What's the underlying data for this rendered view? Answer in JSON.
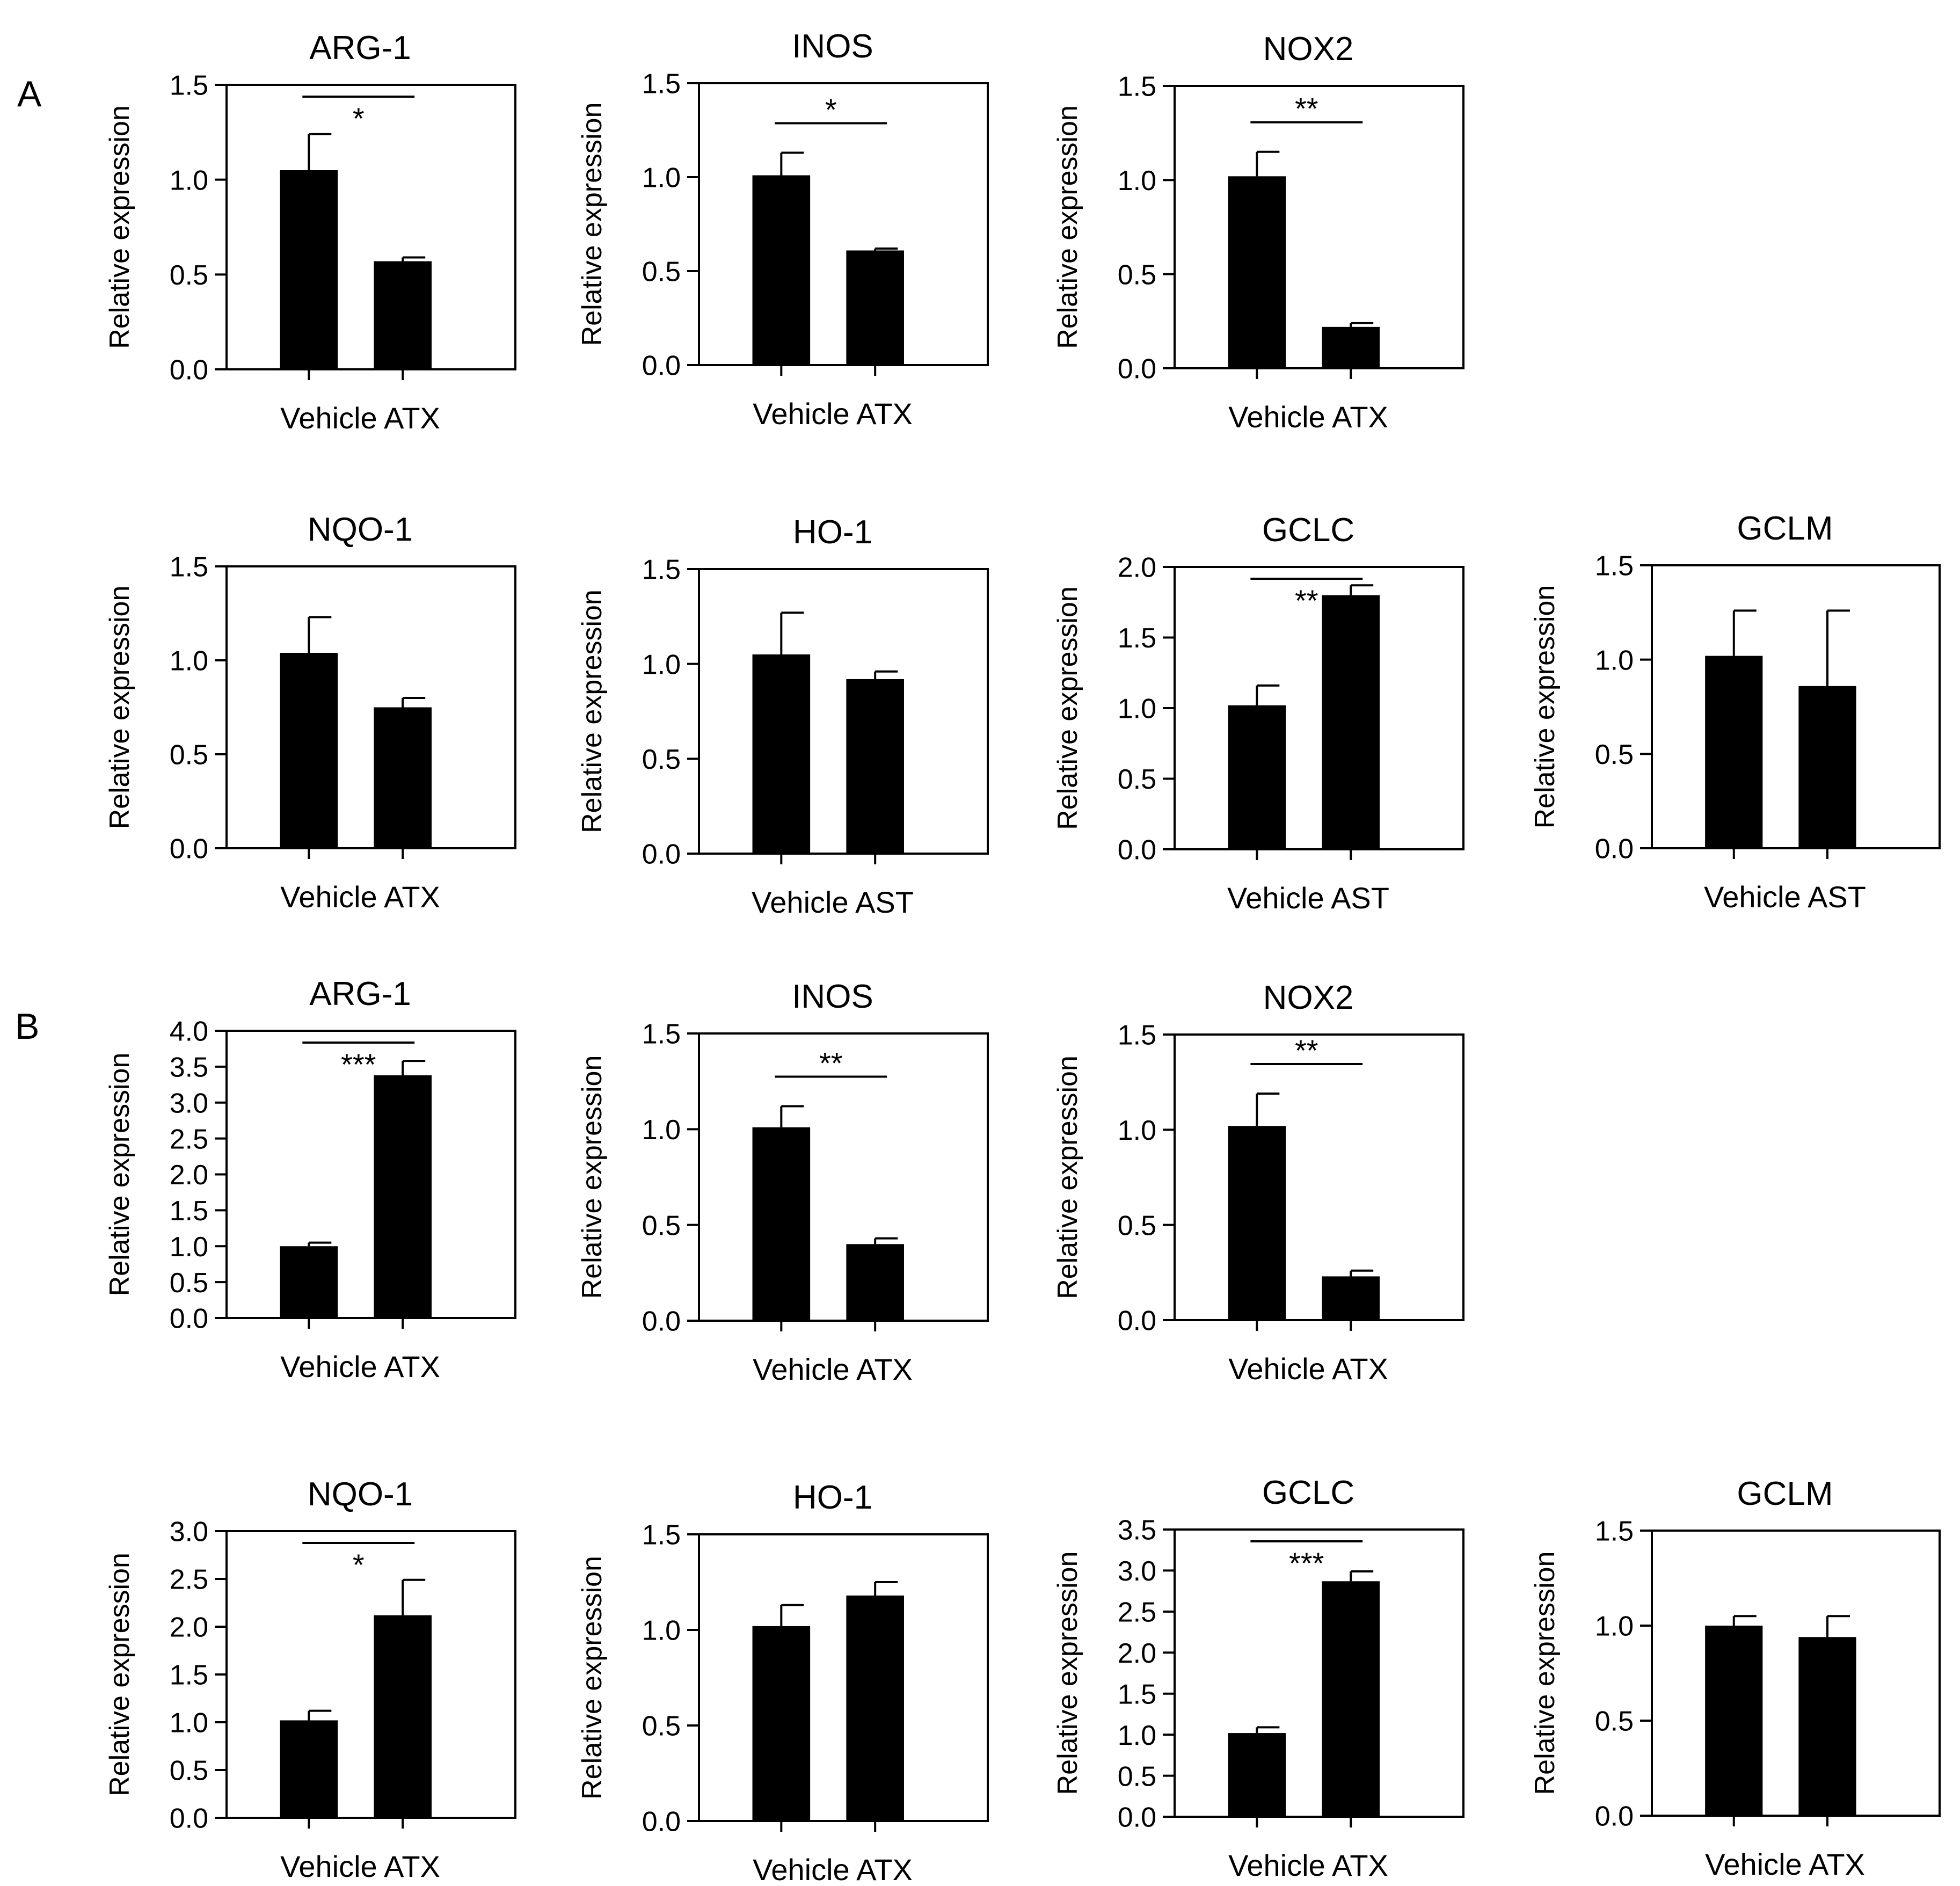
{
  "panel_labels": [
    "A",
    "B"
  ],
  "chart_data": [
    {
      "type": "bar",
      "panel": "A",
      "title": "ARG-1",
      "categories": [
        "Vehicle",
        "ATX"
      ],
      "values": [
        1.05,
        0.57
      ],
      "errors": [
        0.19,
        0.02
      ],
      "ylabel": "Relative expression",
      "xlabel": "Vehicle ATX",
      "ylim": [
        0,
        1.5
      ],
      "yticks": [
        "0.0",
        "0.5",
        "1.0",
        "1.5"
      ],
      "significance": "*"
    },
    {
      "type": "bar",
      "panel": "A",
      "title": "INOS",
      "categories": [
        "Vehicle",
        "ATX"
      ],
      "values": [
        1.01,
        0.61
      ],
      "errors": [
        0.12,
        0.01
      ],
      "ylabel": "Relative expression",
      "xlabel": "Vehicle ATX",
      "ylim": [
        0,
        1.5
      ],
      "yticks": [
        "0.0",
        "0.5",
        "1.0",
        "1.5"
      ],
      "significance": "*"
    },
    {
      "type": "bar",
      "panel": "A",
      "title": "NOX2",
      "categories": [
        "Vehicle",
        "ATX"
      ],
      "values": [
        1.02,
        0.22
      ],
      "errors": [
        0.13,
        0.02
      ],
      "ylabel": "Relative expression",
      "xlabel": "Vehicle ATX",
      "ylim": [
        0,
        1.5
      ],
      "yticks": [
        "0.0",
        "0.5",
        "1.0",
        "1.5"
      ],
      "significance": "**"
    },
    {
      "type": "bar",
      "panel": "A",
      "title": "NQO-1",
      "categories": [
        "Vehicle",
        "ATX"
      ],
      "values": [
        1.04,
        0.75
      ],
      "errors": [
        0.19,
        0.05
      ],
      "ylabel": "Relative expression",
      "xlabel": "Vehicle ATX",
      "ylim": [
        0,
        1.5
      ],
      "yticks": [
        "0.0",
        "0.5",
        "1.0",
        "1.5"
      ],
      "significance": ""
    },
    {
      "type": "bar",
      "panel": "A",
      "title": "HO-1",
      "categories": [
        "Vehicle",
        "AST"
      ],
      "values": [
        1.05,
        0.92
      ],
      "errors": [
        0.22,
        0.04
      ],
      "ylabel": "Relative expression",
      "xlabel": "Vehicle AST",
      "ylim": [
        0,
        1.5
      ],
      "yticks": [
        "0.0",
        "0.5",
        "1.0",
        "1.5"
      ],
      "significance": ""
    },
    {
      "type": "bar",
      "panel": "A",
      "title": "GCLC",
      "categories": [
        "Vehicle",
        "AST"
      ],
      "values": [
        1.02,
        1.8
      ],
      "errors": [
        0.14,
        0.07
      ],
      "ylabel": "Relative expression",
      "xlabel": "Vehicle AST",
      "ylim": [
        0,
        2.0
      ],
      "yticks": [
        "0.0",
        "0.5",
        "1.0",
        "1.5",
        "2.0"
      ],
      "significance": "**"
    },
    {
      "type": "bar",
      "panel": "A",
      "title": "GCLM",
      "categories": [
        "Vehicle",
        "AST"
      ],
      "values": [
        1.02,
        0.86
      ],
      "errors": [
        0.24,
        0.4
      ],
      "ylabel": "Relative expression",
      "xlabel": "Vehicle AST",
      "ylim": [
        0,
        1.5
      ],
      "yticks": [
        "0.0",
        "0.5",
        "1.0",
        "1.5"
      ],
      "significance": ""
    },
    {
      "type": "bar",
      "panel": "B",
      "title": "ARG-1",
      "categories": [
        "Vehicle",
        "ATX"
      ],
      "values": [
        1.0,
        3.38
      ],
      "errors": [
        0.05,
        0.2
      ],
      "ylabel": "Relative expression",
      "xlabel": "Vehicle ATX",
      "ylim": [
        0,
        4.0
      ],
      "yticks": [
        "0.0",
        "0.5",
        "1.0",
        "1.5",
        "2.0",
        "2.5",
        "3.0",
        "3.5",
        "4.0"
      ],
      "significance": "***"
    },
    {
      "type": "bar",
      "panel": "B",
      "title": "INOS",
      "categories": [
        "Vehicle",
        "ATX"
      ],
      "values": [
        1.01,
        0.4
      ],
      "errors": [
        0.11,
        0.03
      ],
      "ylabel": "Relative expression",
      "xlabel": "Vehicle ATX",
      "ylim": [
        0,
        1.5
      ],
      "yticks": [
        "0.0",
        "0.5",
        "1.0",
        "1.5"
      ],
      "significance": "**"
    },
    {
      "type": "bar",
      "panel": "B",
      "title": "NOX2",
      "categories": [
        "Vehicle",
        "ATX"
      ],
      "values": [
        1.02,
        0.23
      ],
      "errors": [
        0.17,
        0.03
      ],
      "ylabel": "Relative expression",
      "xlabel": "Vehicle ATX",
      "ylim": [
        0,
        1.5
      ],
      "yticks": [
        "0.0",
        "0.5",
        "1.0",
        "1.5"
      ],
      "significance": "**"
    },
    {
      "type": "bar",
      "panel": "B",
      "title": "NQO-1",
      "categories": [
        "Vehicle",
        "ATX"
      ],
      "values": [
        1.02,
        2.12
      ],
      "errors": [
        0.1,
        0.37
      ],
      "ylabel": "Relative expression",
      "xlabel": "Vehicle ATX",
      "ylim": [
        0,
        3.0
      ],
      "yticks": [
        "0.0",
        "0.5",
        "1.0",
        "1.5",
        "2.0",
        "2.5",
        "3.0"
      ],
      "significance": "*"
    },
    {
      "type": "bar",
      "panel": "B",
      "title": "HO-1",
      "categories": [
        "Vehicle",
        "ATX"
      ],
      "values": [
        1.02,
        1.18
      ],
      "errors": [
        0.11,
        0.07
      ],
      "ylabel": "Relative expression",
      "xlabel": "Vehicle ATX",
      "ylim": [
        0,
        1.5
      ],
      "yticks": [
        "0.0",
        "0.5",
        "1.0",
        "1.5"
      ],
      "significance": ""
    },
    {
      "type": "bar",
      "panel": "B",
      "title": "GCLC",
      "categories": [
        "Vehicle",
        "ATX"
      ],
      "values": [
        1.02,
        2.87
      ],
      "errors": [
        0.07,
        0.12
      ],
      "ylabel": "Relative expression",
      "xlabel": "Vehicle ATX",
      "ylim": [
        0,
        3.5
      ],
      "yticks": [
        "0.0",
        "0.5",
        "1.0",
        "1.5",
        "2.0",
        "2.5",
        "3.0",
        "3.5"
      ],
      "significance": "***"
    },
    {
      "type": "bar",
      "panel": "B",
      "title": "GCLM",
      "categories": [
        "Vehicle",
        "ATX"
      ],
      "values": [
        1.0,
        0.94
      ],
      "errors": [
        0.05,
        0.11
      ],
      "ylabel": "Relative expression",
      "xlabel": "Vehicle ATX",
      "ylim": [
        0,
        1.5
      ],
      "yticks": [
        "0.0",
        "0.5",
        "1.0",
        "1.5"
      ],
      "significance": ""
    }
  ]
}
